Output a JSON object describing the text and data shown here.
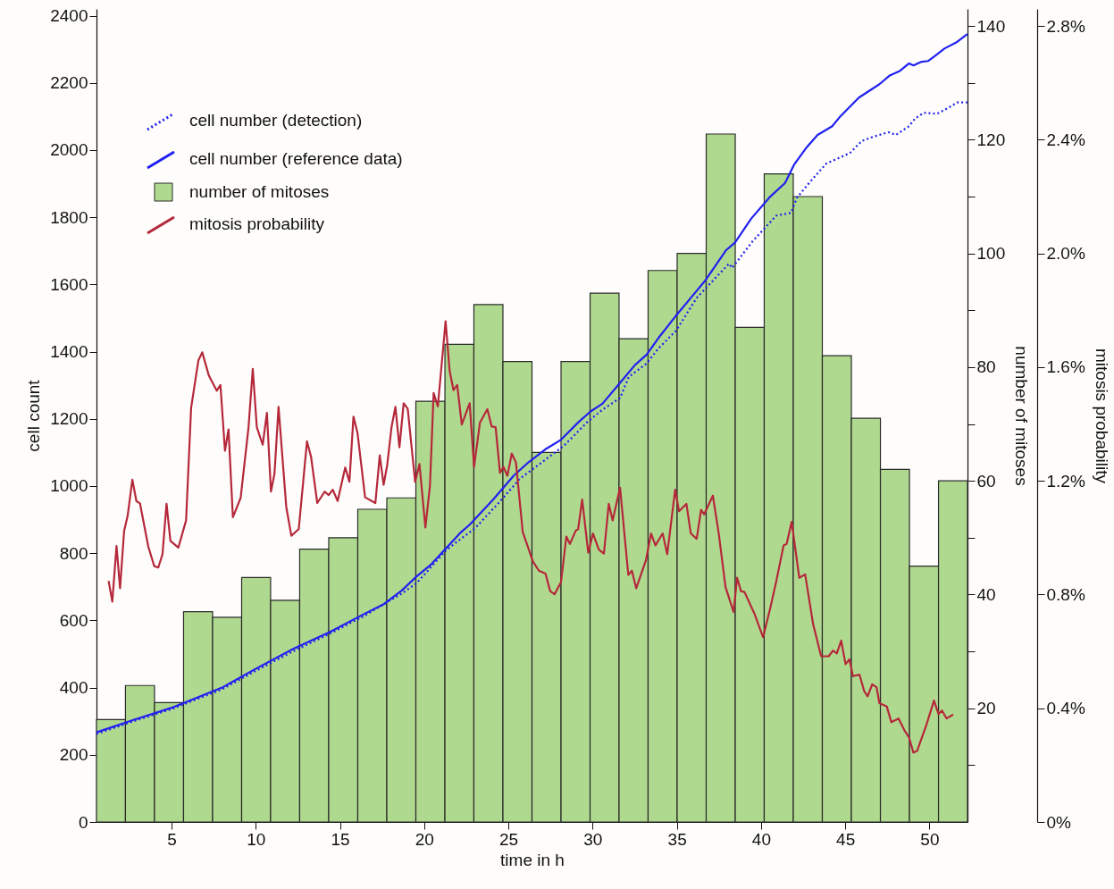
{
  "chart_data": {
    "type": "bar",
    "xlabel": "time in h",
    "ylabel": "cell count",
    "y2label": "number of mitoses",
    "y3label": "mitosis probability",
    "xlim": [
      0.54,
      52.26
    ],
    "xticks": [
      5,
      10,
      15,
      20,
      25,
      30,
      35,
      40,
      45,
      50
    ],
    "ylim": [
      0,
      2420
    ],
    "yticks": [
      0,
      200,
      400,
      600,
      800,
      1000,
      1200,
      1400,
      1600,
      1800,
      2000,
      2200,
      2400
    ],
    "y2lim": [
      0,
      143
    ],
    "y2ticks": [
      {
        "value": 10,
        "label": null
      },
      20,
      {
        "value": 30,
        "label": null
      },
      40,
      {
        "value": 50,
        "label": null
      },
      60,
      {
        "value": 70,
        "label": null
      },
      80,
      {
        "value": 90,
        "label": null
      },
      100,
      {
        "value": 110,
        "label": null
      },
      120,
      {
        "value": 130,
        "label": null
      },
      140
    ],
    "y3lim": [
      0,
      2.86
    ],
    "y3ticks": [
      {
        "value": 0,
        "label": "0%"
      },
      {
        "value": 0.4,
        "label": "0.4%"
      },
      {
        "value": 0.8,
        "label": "0.8%"
      },
      {
        "value": 1.2,
        "label": "1.2%"
      },
      {
        "value": 1.6,
        "label": "1.6%"
      },
      {
        "value": 2.0,
        "label": "2.0%"
      },
      {
        "value": 2.4,
        "label": "2.4%"
      },
      {
        "value": 2.8,
        "label": "2.8%"
      }
    ],
    "grid": false,
    "legend": "top left",
    "series": [
      {
        "name": "cell number (detection)",
        "type": "line",
        "line_style": "dotted",
        "color": "#2020f0",
        "x": [
          0.54,
          2.74,
          5.0,
          8.0,
          9.89,
          12.22,
          14.38,
          16.39,
          18.67,
          19.55,
          21.3,
          23.05,
          24.45,
          25.68,
          26.9,
          28.3,
          29.7,
          30.58,
          31.63,
          32.15,
          33.21,
          33.9,
          34.95,
          36.18,
          38.1,
          38.28,
          39.51,
          40.91,
          41.78,
          42.13,
          43.01,
          43.88,
          45.28,
          45.98,
          46.69,
          47.56,
          48.0,
          48.79,
          49.13,
          49.66,
          50.45,
          51.06,
          51.68,
          52.25
        ],
        "values": [
          262,
          300,
          336,
          395,
          447,
          508,
          560,
          612,
          680,
          711,
          809,
          876,
          951,
          1022,
          1067,
          1120,
          1191,
          1227,
          1262,
          1325,
          1365,
          1409,
          1462,
          1560,
          1662,
          1649,
          1729,
          1805,
          1813,
          1858,
          1911,
          1960,
          1991,
          2027,
          2040,
          2053,
          2045,
          2071,
          2093,
          2111,
          2108,
          2124,
          2142,
          2142
        ]
      },
      {
        "name": "cell number (reference data)",
        "type": "line",
        "line_style": "solid",
        "color": "#2020f0",
        "x": [
          0.54,
          2.74,
          5.0,
          8.0,
          9.89,
          12.22,
          14.38,
          16.39,
          17.62,
          18.67,
          19.55,
          20.42,
          21.12,
          22.17,
          22.7,
          24.1,
          25.32,
          26.2,
          27.25,
          28.13,
          29.18,
          29.88,
          30.58,
          31.63,
          32.51,
          33.21,
          33.9,
          34.95,
          35.83,
          36.71,
          37.93,
          38.46,
          39.42,
          40.56,
          41.43,
          41.96,
          42.66,
          43.36,
          44.23,
          44.67,
          45.81,
          47.03,
          47.65,
          48.26,
          48.79,
          49.05,
          49.48,
          49.92,
          50.45,
          50.89,
          51.59,
          52.25
        ],
        "values": [
          267,
          304,
          340,
          400,
          453,
          515,
          565,
          618,
          649,
          689,
          731,
          767,
          805,
          862,
          885,
          960,
          1031,
          1071,
          1111,
          1138,
          1191,
          1222,
          1245,
          1307,
          1360,
          1391,
          1440,
          1507,
          1560,
          1613,
          1702,
          1725,
          1796,
          1862,
          1902,
          1956,
          2005,
          2045,
          2071,
          2098,
          2156,
          2196,
          2222,
          2236,
          2258,
          2252,
          2262,
          2265,
          2285,
          2302,
          2320,
          2345
        ]
      },
      {
        "name": "number of mitoses",
        "axis": "y2",
        "color": "#b0d990",
        "x": [
          1.4,
          3.12,
          4.85,
          6.57,
          8.3,
          10.02,
          11.74,
          13.47,
          15.19,
          16.92,
          18.64,
          20.37,
          22.09,
          23.81,
          25.54,
          27.26,
          28.99,
          30.71,
          32.43,
          34.16,
          35.88,
          37.61,
          39.33,
          41.05,
          42.78,
          44.5,
          46.23,
          47.95,
          49.68,
          51.4
        ],
        "values": [
          18,
          24,
          21,
          37,
          36,
          43,
          39,
          48,
          50,
          55,
          57,
          74,
          84,
          91,
          81,
          65,
          81,
          93,
          85,
          97,
          100,
          121,
          87,
          114,
          110,
          82,
          71,
          62,
          45,
          60
        ]
      },
      {
        "name": "mitosis probability",
        "type": "line",
        "axis": "y3",
        "line_style": "solid",
        "color": "#b5283a",
        "x": [
          1.26,
          1.48,
          1.73,
          1.94,
          2.18,
          2.39,
          2.67,
          2.91,
          3.12,
          3.62,
          3.97,
          4.21,
          4.46,
          4.7,
          4.93,
          5.4,
          5.86,
          6.16,
          6.59,
          6.82,
          7.21,
          7.68,
          7.9,
          8.17,
          8.38,
          8.64,
          9.1,
          9.57,
          9.82,
          10.06,
          10.41,
          10.66,
          10.9,
          11.11,
          11.35,
          11.81,
          12.11,
          12.55,
          13.04,
          13.28,
          13.65,
          14.09,
          14.33,
          14.57,
          14.86,
          15.31,
          15.56,
          15.8,
          16.04,
          16.49,
          17.1,
          17.36,
          17.59,
          17.8,
          18.06,
          18.29,
          18.53,
          18.78,
          19.02,
          19.46,
          19.72,
          20.07,
          20.34,
          20.56,
          20.81,
          21.27,
          21.51,
          21.74,
          21.96,
          22.23,
          22.7,
          22.96,
          23.31,
          23.75,
          24.01,
          24.24,
          24.5,
          24.71,
          24.94,
          25.2,
          25.45,
          25.85,
          26.46,
          26.81,
          27.2,
          27.48,
          27.74,
          28.12,
          28.44,
          28.65,
          29.0,
          29.14,
          29.38,
          29.74,
          30.02,
          30.37,
          30.67,
          30.96,
          31.19,
          31.63,
          32.12,
          32.33,
          32.59,
          33.17,
          33.47,
          33.73,
          34.16,
          34.43,
          34.9,
          35.13,
          35.57,
          35.83,
          36.18,
          36.44,
          36.62,
          37.14,
          37.49,
          37.89,
          38.37,
          38.58,
          38.81,
          39.02,
          39.6,
          40.12,
          40.56,
          40.91,
          41.34,
          41.52,
          41.82,
          42.27,
          42.62,
          43.09,
          43.57,
          44.02,
          44.27,
          44.5,
          44.76,
          45.02,
          45.25,
          45.46,
          45.85,
          46.12,
          46.33,
          46.6,
          46.86,
          47.03,
          47.47,
          47.74,
          48.17,
          48.52,
          48.79,
          49.05,
          49.27,
          49.8,
          50.27,
          50.54,
          50.75,
          51.02,
          51.41
        ],
        "values": [
          0.848,
          0.775,
          0.971,
          0.822,
          1.023,
          1.077,
          1.204,
          1.129,
          1.121,
          0.968,
          0.9,
          0.895,
          0.942,
          1.119,
          0.989,
          0.965,
          1.061,
          1.457,
          1.623,
          1.652,
          1.571,
          1.517,
          1.537,
          1.306,
          1.381,
          1.072,
          1.14,
          1.389,
          1.594,
          1.389,
          1.327,
          1.439,
          1.162,
          1.225,
          1.46,
          1.108,
          1.007,
          1.03,
          1.339,
          1.285,
          1.122,
          1.162,
          1.15,
          1.169,
          1.129,
          1.247,
          1.197,
          1.426,
          1.368,
          1.142,
          1.122,
          1.29,
          1.186,
          1.254,
          1.389,
          1.46,
          1.318,
          1.473,
          1.454,
          1.197,
          1.259,
          1.036,
          1.181,
          1.509,
          1.462,
          1.761,
          1.587,
          1.519,
          1.537,
          1.398,
          1.473,
          1.249,
          1.405,
          1.452,
          1.391,
          1.389,
          1.228,
          1.249,
          1.218,
          1.296,
          1.264,
          1.02,
          0.916,
          0.884,
          0.874,
          0.812,
          0.801,
          0.843,
          1.004,
          0.978,
          1.025,
          1.03,
          1.134,
          0.947,
          1.015,
          0.958,
          0.944,
          1.119,
          1.061,
          1.176,
          0.869,
          0.884,
          0.822,
          0.921,
          1.015,
          0.973,
          1.015,
          0.942,
          1.169,
          1.093,
          1.119,
          1.015,
          0.996,
          1.098,
          1.082,
          1.148,
          1.015,
          0.827,
          0.739,
          0.859,
          0.812,
          0.809,
          0.734,
          0.65,
          0.755,
          0.848,
          0.973,
          0.978,
          1.056,
          0.859,
          0.871,
          0.697,
          0.583,
          0.583,
          0.603,
          0.593,
          0.638,
          0.555,
          0.572,
          0.513,
          0.518,
          0.461,
          0.442,
          0.484,
          0.474,
          0.418,
          0.406,
          0.351,
          0.364,
          0.322,
          0.297,
          0.244,
          0.25,
          0.338,
          0.427,
          0.38,
          0.392,
          0.364,
          0.378
        ]
      }
    ]
  }
}
